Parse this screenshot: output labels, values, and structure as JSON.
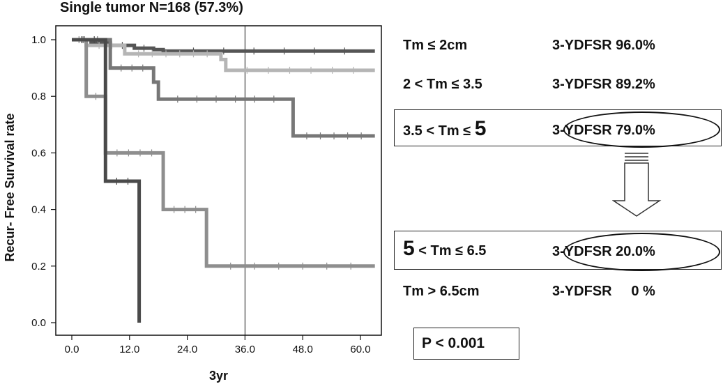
{
  "title": "Single tumor N=168 (57.3%)",
  "chart_data": {
    "type": "line",
    "title": "Single tumor N=168 (57.3%)",
    "xlabel": "3yr",
    "ylabel": "Recur- Free Survival rate",
    "xlim": [
      0,
      63
    ],
    "ylim": [
      0,
      1.0
    ],
    "xticks": [
      "0.0",
      "12.0",
      "24.0",
      "36.0",
      "48.0",
      "60.0"
    ],
    "yticks": [
      "0.0",
      "0.2",
      "0.4",
      "0.6",
      "0.8",
      "1.0"
    ],
    "reference_line_x": 36,
    "curve_style": "step",
    "series": [
      {
        "name": "Tm ≤ 2cm",
        "color": "#555555",
        "x": [
          0,
          4,
          8,
          13,
          17,
          19,
          63
        ],
        "y": [
          1.0,
          0.99,
          0.98,
          0.97,
          0.965,
          0.96,
          0.96
        ]
      },
      {
        "name": "2 < Tm ≤ 3.5",
        "color": "#b5b5b5",
        "x": [
          0,
          3,
          11,
          31,
          32,
          63
        ],
        "y": [
          1.0,
          0.98,
          0.95,
          0.93,
          0.892,
          0.892
        ]
      },
      {
        "name": "3.5 < Tm ≤ 5",
        "color": "#777777",
        "x": [
          0,
          8,
          17,
          18,
          46,
          63
        ],
        "y": [
          1.0,
          0.9,
          0.85,
          0.79,
          0.66,
          0.66
        ]
      },
      {
        "name": "5 < Tm ≤ 6.5",
        "color": "#8e8e8e",
        "x": [
          0,
          3,
          7,
          19,
          28,
          63
        ],
        "y": [
          1.0,
          0.8,
          0.6,
          0.4,
          0.2,
          0.2
        ]
      },
      {
        "name": "Tm > 6.5cm",
        "color": "#4a4a4a",
        "x": [
          0,
          7,
          14,
          14
        ],
        "y": [
          1.0,
          0.5,
          0.5,
          0.0
        ]
      }
    ],
    "censor_marks": true
  },
  "rows": [
    {
      "label": "Tm ≤ 2cm",
      "stat": "3-YDFSR 96.0%"
    },
    {
      "label": "2 < Tm ≤ 3.5",
      "stat": "3-YDFSR 89.2%"
    },
    {
      "label_pre": "3.5 < Tm ≤ ",
      "label_big": "5",
      "stat": "3-YDFSR 79.0%"
    },
    {
      "label_big": "5",
      "label_post": " < Tm ≤ 6.5",
      "stat": "3-YDFSR 20.0%"
    },
    {
      "label": "Tm > 6.5cm",
      "stat": "3-YDFSR     0 %"
    }
  ],
  "pvalue": "P < 0.001"
}
